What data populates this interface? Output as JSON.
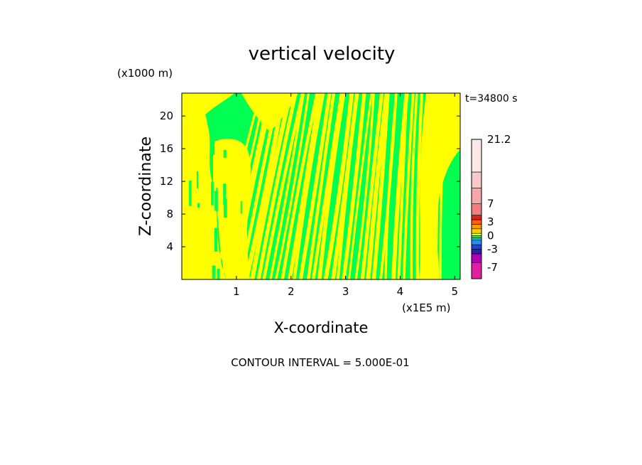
{
  "chart_data": {
    "type": "heatmap",
    "title": "vertical velocity",
    "xlabel": "X-coordinate",
    "ylabel": "Z-coordinate",
    "x_unit": "(x1E5 m)",
    "y_unit": "(x1000 m)",
    "time_label": "t=34800 s",
    "footer": "CONTOUR INTERVAL = 5.000E-01",
    "xlim": [
      0,
      5.1
    ],
    "ylim": [
      0,
      22.8
    ],
    "x_ticks": [
      1,
      2,
      3,
      4,
      5
    ],
    "x_tick_labels": [
      "1",
      "2",
      "3",
      "4",
      "5"
    ],
    "y_ticks": [
      4,
      8,
      12,
      16,
      20
    ],
    "y_tick_labels": [
      "4",
      "8",
      "12",
      "16",
      "20"
    ],
    "colorbar": {
      "min": -9.5,
      "max": 21.2,
      "labels": [
        {
          "value": 21.2,
          "text": "21.2"
        },
        {
          "value": 7,
          "text": "7"
        },
        {
          "value": 3,
          "text": "3"
        },
        {
          "value": 0,
          "text": "0"
        },
        {
          "value": -3,
          "text": "-3"
        },
        {
          "value": -7,
          "text": "-7"
        }
      ],
      "bands": [
        {
          "from": -9.5,
          "to": -6.0,
          "color": "#e020a0"
        },
        {
          "from": -6.0,
          "to": -4.0,
          "color": "#b000b0"
        },
        {
          "from": -4.0,
          "to": -3.0,
          "color": "#3020b0"
        },
        {
          "from": -3.0,
          "to": -2.0,
          "color": "#2040e0"
        },
        {
          "from": -2.0,
          "to": -1.0,
          "color": "#2090f0"
        },
        {
          "from": -1.0,
          "to": -0.5,
          "color": "#20c0d0"
        },
        {
          "from": -0.5,
          "to": 0.0,
          "color": "#00ff50"
        },
        {
          "from": 0.0,
          "to": 0.5,
          "color": "#ffff00"
        },
        {
          "from": 0.5,
          "to": 1.5,
          "color": "#ffd000"
        },
        {
          "from": 1.5,
          "to": 2.5,
          "color": "#ff9a00"
        },
        {
          "from": 2.5,
          "to": 3.5,
          "color": "#ff6000"
        },
        {
          "from": 3.5,
          "to": 4.5,
          "color": "#e02020"
        },
        {
          "from": 4.5,
          "to": 7.0,
          "color": "#f08080"
        },
        {
          "from": 7.0,
          "to": 10.5,
          "color": "#f4a8a8"
        },
        {
          "from": 10.5,
          "to": 14.0,
          "color": "#f8c8c8"
        },
        {
          "from": 14.0,
          "to": 21.2,
          "color": "#fde8e8"
        }
      ]
    },
    "field": {
      "dominant_positive_color": "#ffff00",
      "dominant_negative_color": "#00ff50",
      "description_values": "alternating weak updraft (0 to 0.5) and weak downdraft (-0.5 to 0) bands"
    }
  }
}
